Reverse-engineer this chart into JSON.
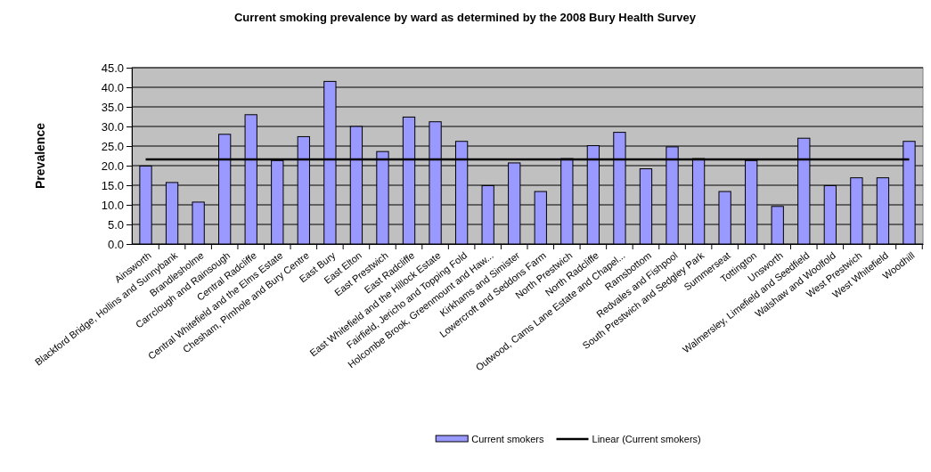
{
  "chart_data": {
    "type": "bar",
    "title": "Current smoking prevalence by ward as determined by the 2008 Bury Health Survey",
    "ylabel": "Prevalence",
    "categories": [
      "Ainsworth",
      "Blackford Bridge, Hollins and Sunnybank",
      "Brandlesholme",
      "Carrclough and Rainsough",
      "Central Radcliffe",
      "Central Whitefield and the Elms Estate",
      "Chesham, Pimhole and Bury Centre",
      "East Bury",
      "East Elton",
      "East Prestwich",
      "East Radcliffe",
      "East Whitefield and the Hillock Estate",
      "Fairfield, Jericho and Topping Fold",
      "Holcombe Brook, Greenmount and Haw...",
      "Kirkhams and Simister",
      "Lowercroft and Seddons Farm",
      "North Prestwich",
      "North Radcliffe",
      "Outwood, Cams Lane Estate and Chapel...",
      "Ramsbottom",
      "Redvales and Fishpool",
      "South Prestwich and Sedgley Park",
      "Summerseat",
      "Tottington",
      "Unsworth",
      "Walmersley, Limefield and Seedfield",
      "Walshaw and Woolfold",
      "West Prestwich",
      "West Whitefield",
      "Woodhill"
    ],
    "series": [
      {
        "name": "Current smokers",
        "color": "#9999ff",
        "values": [
          19.9,
          15.7,
          10.7,
          28.0,
          33.0,
          21.3,
          27.4,
          41.5,
          30.0,
          23.6,
          32.4,
          31.2,
          26.2,
          14.9,
          20.7,
          13.4,
          21.8,
          25.1,
          28.5,
          19.2,
          24.8,
          21.8,
          13.4,
          21.3,
          9.6,
          27.0,
          14.9,
          16.9,
          16.9,
          26.2
        ]
      },
      {
        "name": "Linear (Current smokers)",
        "type": "line",
        "color": "#000000",
        "values": [
          21.6,
          21.6,
          21.6,
          21.6,
          21.6,
          21.6,
          21.6,
          21.6,
          21.6,
          21.6,
          21.6,
          21.6,
          21.6,
          21.6,
          21.6,
          21.6,
          21.6,
          21.6,
          21.6,
          21.6,
          21.6,
          21.6,
          21.6,
          21.6,
          21.6,
          21.6,
          21.6,
          21.6,
          21.6,
          21.6
        ]
      }
    ],
    "ylim": [
      0,
      45
    ],
    "yticks": [
      {
        "value": 0,
        "label": "0.0"
      },
      {
        "value": 5,
        "label": "5.0"
      },
      {
        "value": 10,
        "label": "10.0"
      },
      {
        "value": 15,
        "label": "15.0"
      },
      {
        "value": 20,
        "label": "20.0"
      },
      {
        "value": 25,
        "label": "25.0"
      },
      {
        "value": 30,
        "label": "30.0"
      },
      {
        "value": 35,
        "label": "35.0"
      },
      {
        "value": 40,
        "label": "40.0"
      },
      {
        "value": 45,
        "label": "45.0"
      }
    ],
    "grid": "y",
    "legend": "bottom"
  }
}
